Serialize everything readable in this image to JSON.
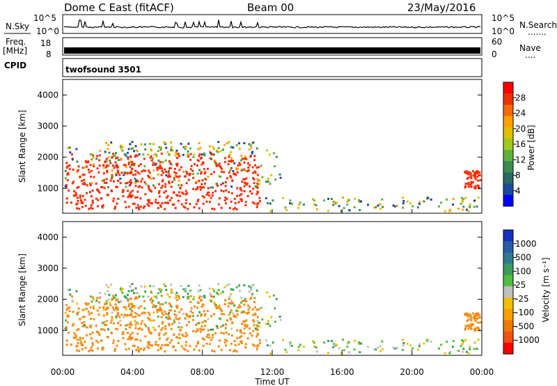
{
  "header": {
    "station": "Dome C East (fitACF)",
    "beam": "Beam 00",
    "date": "23/May/2016"
  },
  "top_panels": {
    "nsky_label": "N.Sky",
    "nsearch_label": "N.Search",
    "nsearch_dots": ".......",
    "freq_label": "Freq.",
    "freq_unit": "[MHz]",
    "nave_label": "Nave",
    "nave_dots": "....",
    "cpid_label": "CPID",
    "cpid_value": "twofsound 3501",
    "noise_ticks": [
      "10^5",
      "10^0"
    ],
    "freq_ticks": [
      "18",
      "8"
    ],
    "nave_ticks": [
      "60",
      "0"
    ]
  },
  "chart_data": [
    {
      "type": "heatmap",
      "name": "power",
      "ylabel": "Slant Range [km]",
      "ylim": [
        200,
        4500
      ],
      "yticks": [
        "4000",
        "3000",
        "2000",
        "1000"
      ],
      "colorbar_label": "Power [dB]",
      "colorbar_ticks": [
        "28",
        "24",
        "20",
        "16",
        "12",
        "8",
        "4"
      ],
      "colorbar_colors": [
        "#ff0000",
        "#f0300a",
        "#f56b0a",
        "#ffa000",
        "#e0c000",
        "#a0c820",
        "#60b040",
        "#3c8c50",
        "#2a6a60",
        "#1c4aa0",
        "#0000ff"
      ]
    },
    {
      "type": "heatmap",
      "name": "velocity",
      "ylabel": "Slant Range [km]",
      "ylim": [
        200,
        4500
      ],
      "yticks": [
        "4000",
        "3000",
        "2000",
        "1000"
      ],
      "colorbar_label": "Velocity [m s⁻¹]",
      "colorbar_ticks": [
        "1000",
        "500",
        "100",
        "25",
        "-25",
        "-100",
        "-500",
        "-1000"
      ],
      "colorbar_colors": [
        "#1830c0",
        "#2a5aa8",
        "#2e7a90",
        "#3a9c5c",
        "#50bc40",
        "#c0c0c0",
        "#f0c000",
        "#f5a000",
        "#f07800",
        "#f05010",
        "#ff0000"
      ]
    }
  ],
  "x_axis": {
    "ticks": [
      "00:00",
      "04:00",
      "08:00",
      "12:00",
      "16:00",
      "20:00",
      "00:00"
    ],
    "label": "Time UT"
  }
}
